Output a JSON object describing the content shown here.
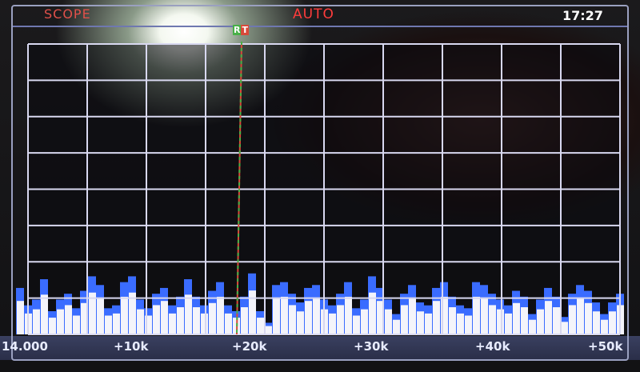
{
  "header": {
    "mode_label": "SCOPE",
    "scope_mode": "AUTO",
    "clock": "17:27"
  },
  "marker": {
    "label_r": "R",
    "label_t": "T",
    "colors": {
      "r": "#48b048",
      "t": "#d84a3a"
    }
  },
  "axis": {
    "labels": [
      "14.000",
      "+10k",
      "+20k",
      "+30k",
      "+40k",
      "+50k"
    ]
  },
  "colors": {
    "grid": "#d8d8f0",
    "trace_peak": "#3a6cff",
    "trace_fill": "#f4f4fa",
    "title": "#ff3c3c"
  },
  "spectrum_levels": [
    0.16,
    0.1,
    0.12,
    0.19,
    0.08,
    0.12,
    0.14,
    0.09,
    0.15,
    0.2,
    0.17,
    0.09,
    0.1,
    0.18,
    0.2,
    0.12,
    0.09,
    0.14,
    0.16,
    0.1,
    0.13,
    0.19,
    0.13,
    0.1,
    0.15,
    0.18,
    0.1,
    0.08,
    0.13,
    0.21,
    0.08,
    0.04,
    0.17,
    0.18,
    0.14,
    0.11,
    0.16,
    0.17,
    0.12,
    0.1,
    0.14,
    0.18,
    0.09,
    0.12,
    0.2,
    0.16,
    0.12,
    0.07,
    0.14,
    0.17,
    0.11,
    0.1,
    0.16,
    0.18,
    0.13,
    0.1,
    0.09,
    0.18,
    0.17,
    0.14,
    0.12,
    0.1,
    0.15,
    0.13,
    0.07,
    0.12,
    0.16,
    0.13,
    0.06,
    0.14,
    0.17,
    0.15,
    0.11,
    0.07,
    0.11,
    0.14
  ]
}
